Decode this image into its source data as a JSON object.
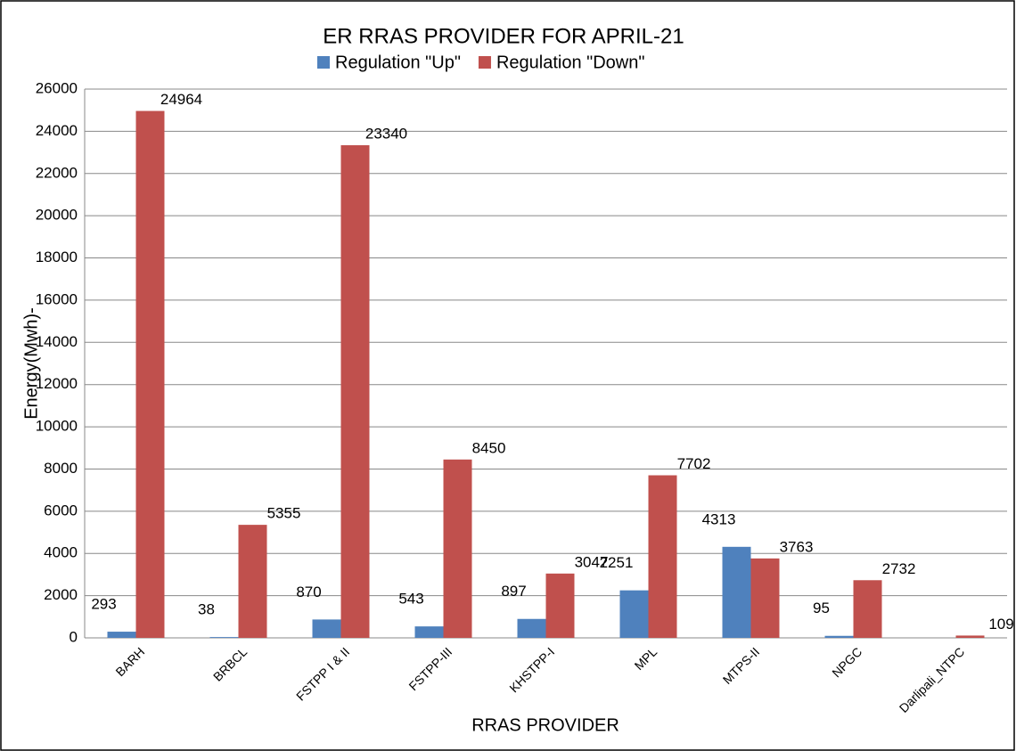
{
  "chart_data": {
    "type": "bar",
    "title": "ER RRAS PROVIDER FOR APRIL-21",
    "x_label": "RRAS PROVIDER",
    "y_label": "Energy(Mwh)-",
    "categories": [
      "BARH",
      "BRBCL",
      "FSTPP I & II",
      "FSTPP-III",
      "KHSTPP-I",
      "MPL",
      "MTPS-II",
      "NPGC",
      "Darlipali_NTPC"
    ],
    "series": [
      {
        "name": "Regulation \"Up\"",
        "color": "#4f81bd",
        "label_color": "#000000",
        "values": [
          293,
          38,
          870,
          543,
          897,
          2251,
          4313,
          95,
          null
        ]
      },
      {
        "name": "Regulation \"Down\"",
        "color": "#c0504d",
        "label_color": "#e46c0a",
        "values": [
          24964,
          5355,
          23340,
          8450,
          3047,
          7702,
          3763,
          2732,
          109
        ]
      }
    ],
    "ylim": [
      0,
      26000
    ],
    "yticks": [
      0,
      2000,
      4000,
      6000,
      8000,
      10000,
      12000,
      14000,
      16000,
      18000,
      20000,
      22000,
      24000,
      26000
    ],
    "grid": true,
    "legend": "top"
  }
}
